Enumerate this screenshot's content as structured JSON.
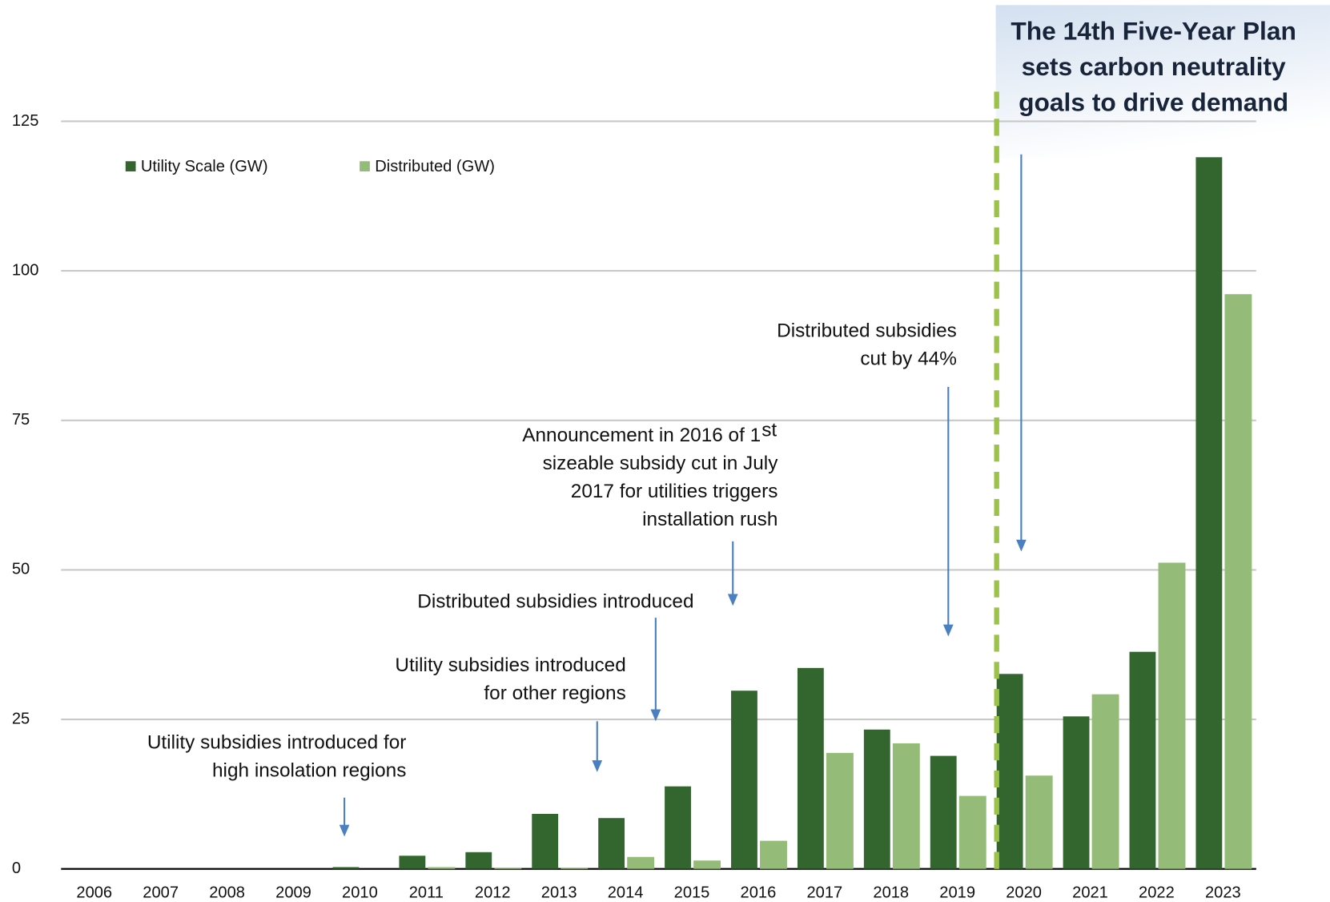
{
  "chart_data": {
    "type": "bar",
    "categories": [
      "2006",
      "2007",
      "2008",
      "2009",
      "2010",
      "2011",
      "2012",
      "2013",
      "2014",
      "2015",
      "2016",
      "2017",
      "2018",
      "2019",
      "2020",
      "2021",
      "2022",
      "2023"
    ],
    "series": [
      {
        "name": "Utility Scale (GW)",
        "color": "#33652e",
        "values": [
          0,
          0,
          0,
          0,
          0.3,
          2.2,
          2.8,
          9.2,
          8.5,
          13.8,
          29.8,
          33.6,
          23.3,
          18.9,
          32.6,
          25.5,
          36.3,
          119
        ]
      },
      {
        "name": "Distributed (GW)",
        "color": "#94bb77",
        "values": [
          0,
          0,
          0,
          0,
          0,
          0.3,
          0.2,
          0.2,
          2.0,
          1.4,
          4.7,
          19.4,
          21.0,
          12.2,
          15.6,
          29.2,
          51.2,
          96.1
        ]
      }
    ],
    "ylim": [
      0,
      125
    ],
    "yticks": [
      0,
      25,
      50,
      75,
      100,
      125
    ],
    "grid": true,
    "legend": "top-left",
    "annotations": [
      {
        "lines": [
          "Utility subsidies introduced for",
          "high insolation regions"
        ]
      },
      {
        "lines": [
          "Utility subsidies introduced",
          "for other regions"
        ]
      },
      {
        "lines": [
          "Distributed subsidies introduced"
        ]
      },
      {
        "lines": [
          "Announcement in 2016 of 1",
          "sizeable subsidy cut in July",
          "2017 for utilities triggers",
          "installation rush"
        ],
        "superscript": "st"
      },
      {
        "lines": [
          "Distributed subsidies",
          "cut by 44%"
        ]
      }
    ],
    "callout": {
      "lines": [
        "The 14th Five-Year Plan",
        "sets carbon neutrality",
        "goals to drive demand"
      ]
    }
  }
}
